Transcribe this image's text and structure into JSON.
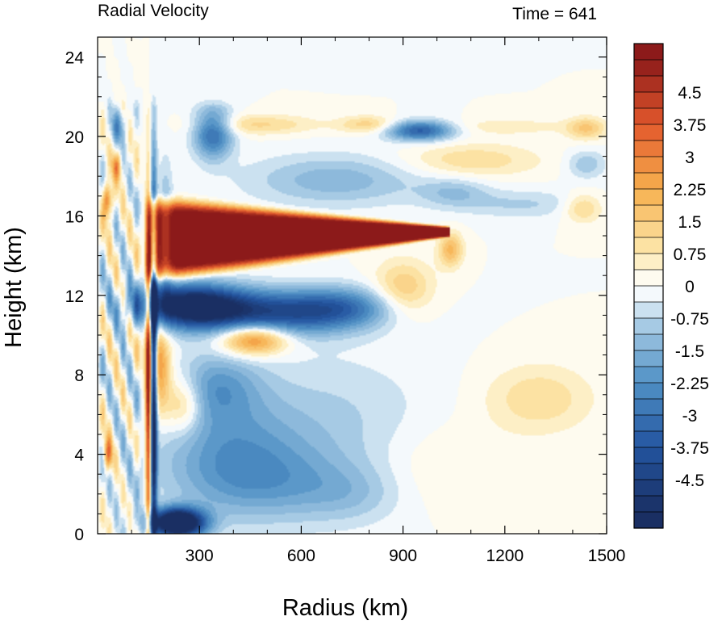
{
  "chart_data": {
    "type": "heatmap",
    "title": "Radial Velocity",
    "title_right": "Time = 641",
    "xlabel": "Radius (km)",
    "ylabel": "Height (km)",
    "xlim": [
      0,
      1500
    ],
    "ylim": [
      0,
      25
    ],
    "x_ticks": [
      300,
      600,
      900,
      1200,
      1500
    ],
    "x_tick_labels": [
      "300",
      "600",
      "900",
      "1200",
      "1500"
    ],
    "y_ticks": [
      0,
      4,
      8,
      12,
      16,
      20,
      24
    ],
    "y_tick_labels": [
      "0",
      "4",
      "8",
      "12",
      "16",
      "20",
      "24"
    ],
    "grid": false,
    "colorbar": {
      "levels": [
        -5.25,
        -4.875,
        -4.5,
        -4.125,
        -3.75,
        -3.375,
        -3,
        -2.625,
        -2.25,
        -1.875,
        -1.5,
        -1.125,
        -0.75,
        -0.375,
        0,
        0.375,
        0.75,
        1.125,
        1.5,
        1.875,
        2.25,
        2.625,
        3,
        3.375,
        3.75,
        4.125,
        4.5,
        4.875,
        5.25
      ],
      "labels": [
        "4.5",
        "3.75",
        "3",
        "2.25",
        "1.5",
        "0.75",
        "0",
        "-0.75",
        "-1.5",
        "-2.25",
        "-3",
        "-3.75",
        "-4.5"
      ],
      "label_values": [
        4.5,
        3.75,
        3,
        2.25,
        1.5,
        0.75,
        0,
        -0.75,
        -1.5,
        -2.25,
        -3,
        -3.75,
        -4.5
      ],
      "colormap": "blue-white-red diverging",
      "min_color": "#1a2f63",
      "zero_color": "#ffffff",
      "max_color": "#8c1a1a"
    },
    "features": [
      {
        "kind": "outflow_jet",
        "sign": "positive",
        "r_range": [
          140,
          1030
        ],
        "z_center": 14.8,
        "z_halfwidth_inner": 1.8,
        "peak": 6.5
      },
      {
        "kind": "inflow_layer_upper",
        "sign": "negative",
        "r_range": [
          170,
          800
        ],
        "z_center": 11.5,
        "peak": -5.5
      },
      {
        "kind": "boundary_layer_inflow",
        "sign": "negative",
        "r_range": [
          180,
          360
        ],
        "z_center": 0.5,
        "peak": -7.5
      },
      {
        "kind": "eyewall_inflow_strip",
        "sign": "negative",
        "r_center": 165,
        "z_range": [
          0,
          17
        ],
        "peak": -6
      },
      {
        "kind": "eyewall_outflow_strip",
        "sign": "positive",
        "r_center": 150,
        "z_range": [
          1,
          14
        ],
        "peak": 5
      },
      {
        "kind": "mid_outflow",
        "sign": "positive",
        "r_center": 470,
        "z_center": 9.8,
        "peak": 3.5
      },
      {
        "kind": "upper_inflow",
        "sign": "negative",
        "r_center": 950,
        "z_center": 20.3,
        "peak": -3.5
      },
      {
        "kind": "outer_weak_outflow",
        "sign": "positive",
        "r_center": 1300,
        "z_center": 6.8,
        "peak": 1.1
      }
    ]
  }
}
